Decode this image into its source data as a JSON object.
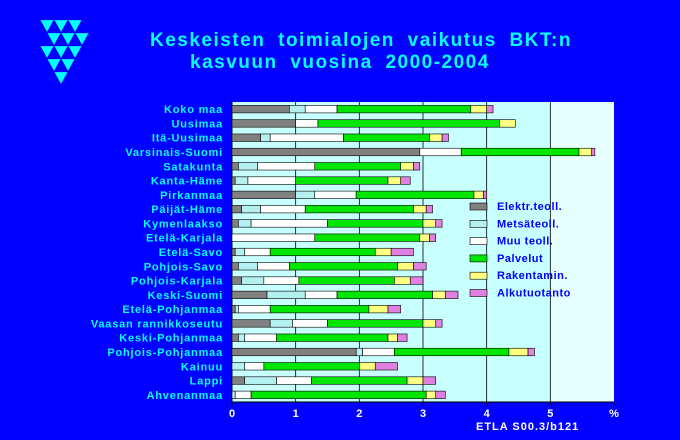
{
  "title_lines": [
    "Keskeisten  toimialojen  vaikutus  BKT:n",
    "kasvuun  vuosina  2000-2004"
  ],
  "footer": "ETLA S00.3/b121",
  "logo": {
    "name": "triangle-logo",
    "color": "#00ffff"
  },
  "colors": {
    "background": "#0000ff",
    "plot_bg": "#c8ffff",
    "plot_bg_far": "#e6ffff",
    "title": "#00ffff",
    "labels": "#00ffff",
    "axis_ticks": "#ffffff"
  },
  "chart_data": {
    "type": "bar",
    "orientation": "horizontal",
    "stacked": true,
    "xlim": [
      0,
      6
    ],
    "xticks": [
      "0",
      "1",
      "2",
      "3",
      "4",
      "5",
      "%"
    ],
    "grid": true,
    "legend_position": "right",
    "categories": [
      "Koko maa",
      "Uusimaa",
      "Itä-Uusimaa",
      "Varsinais-Suomi",
      "Satakunta",
      "Kanta-Häme",
      "Pirkanmaa",
      "Päijät-Häme",
      "Kymenlaakso",
      "Etelä-Karjala",
      "Etelä-Savo",
      "Pohjois-Savo",
      "Pohjois-Karjala",
      "Keski-Suomi",
      "Etelä-Pohjanmaa",
      "Vaasan rannikkoseutu",
      "Keski-Pohjanmaa",
      "Pohjois-Pohjanmaa",
      "Kainuu",
      "Lappi",
      "Ahvenanmaa"
    ],
    "series": [
      {
        "name": "Elektr.teoll.",
        "color": "#808080",
        "values": [
          0.9,
          1.0,
          0.45,
          2.95,
          0.1,
          0.05,
          1.0,
          0.15,
          0.1,
          0.0,
          0.05,
          0.1,
          0.15,
          0.55,
          0.05,
          0.6,
          0.1,
          1.95,
          0.0,
          0.2,
          0.0
        ]
      },
      {
        "name": "Metsäteoll.",
        "color": "#b4f0f0",
        "values": [
          0.25,
          0.0,
          0.15,
          0.0,
          0.3,
          0.2,
          0.3,
          0.3,
          0.2,
          0.0,
          0.15,
          0.3,
          0.35,
          0.6,
          0.05,
          0.35,
          0.1,
          0.1,
          0.2,
          0.5,
          0.05
        ]
      },
      {
        "name": "Muu teoll.",
        "color": "#ffffff",
        "values": [
          0.5,
          0.35,
          1.15,
          0.65,
          0.9,
          0.75,
          0.65,
          0.7,
          1.2,
          1.3,
          0.4,
          0.5,
          0.55,
          0.5,
          0.5,
          0.55,
          0.5,
          0.5,
          0.3,
          0.55,
          0.25
        ]
      },
      {
        "name": "Palvelut",
        "color": "#00e600",
        "values": [
          2.1,
          2.85,
          1.35,
          1.85,
          1.35,
          1.45,
          1.85,
          1.7,
          1.5,
          1.65,
          1.65,
          1.7,
          1.5,
          1.5,
          1.55,
          1.5,
          1.75,
          1.8,
          1.5,
          1.5,
          2.75
        ]
      },
      {
        "name": "Rakentamin.",
        "color": "#ffff80",
        "values": [
          0.25,
          0.25,
          0.2,
          0.2,
          0.2,
          0.2,
          0.15,
          0.2,
          0.2,
          0.15,
          0.25,
          0.25,
          0.25,
          0.2,
          0.3,
          0.2,
          0.15,
          0.3,
          0.25,
          0.25,
          0.15
        ]
      },
      {
        "name": "Alkutuotanto",
        "color": "#e080e0",
        "values": [
          0.1,
          0.0,
          0.1,
          0.05,
          0.1,
          0.15,
          0.05,
          0.1,
          0.1,
          0.1,
          0.35,
          0.2,
          0.2,
          0.2,
          0.2,
          0.1,
          0.15,
          0.1,
          0.35,
          0.2,
          0.15
        ]
      }
    ]
  }
}
